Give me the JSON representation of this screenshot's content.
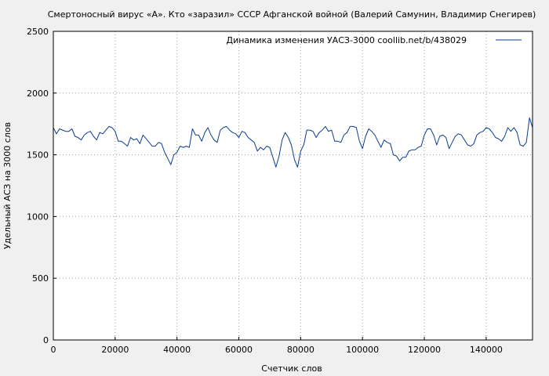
{
  "chart_data": {
    "type": "line",
    "title": "Смертоносный вирус «А». Кто «заразил» СССР Афганской войной (Валерий Самунин, Владимир Снегирев)",
    "xlabel": "Счетчик слов",
    "ylabel": "Удельный АСЗ на 3000 слов",
    "xlim": [
      0,
      155000
    ],
    "ylim": [
      0,
      2500
    ],
    "x_ticks": [
      0,
      20000,
      40000,
      60000,
      80000,
      100000,
      120000,
      140000
    ],
    "x_tick_labels": [
      "0",
      "20000",
      "40000",
      "60000",
      "80000",
      "100000",
      "120000",
      "140000"
    ],
    "y_ticks": [
      0,
      500,
      1000,
      1500,
      2000,
      2500
    ],
    "y_tick_labels": [
      "0",
      "500",
      "1000",
      "1500",
      "2000",
      "2500"
    ],
    "grid": true,
    "legend_position": "top-right",
    "colors": {
      "series": "#0b3d91",
      "background": "#f0f0f0",
      "plot_bg": "#ffffff",
      "grid": "#a0a0a0"
    },
    "series": [
      {
        "name": "Динамика изменения УАСЗ-3000  coollib.net/b/438029",
        "x": [
          0,
          1000,
          2000,
          3000,
          4000,
          5000,
          6000,
          7000,
          8000,
          9000,
          10000,
          11000,
          12000,
          13000,
          14000,
          15000,
          16000,
          17000,
          18000,
          19000,
          20000,
          21000,
          22000,
          23000,
          24000,
          25000,
          26000,
          27000,
          28000,
          29000,
          30000,
          31000,
          32000,
          33000,
          34000,
          35000,
          36000,
          37000,
          38000,
          39000,
          40000,
          41000,
          42000,
          43000,
          44000,
          45000,
          46000,
          47000,
          48000,
          49000,
          50000,
          51000,
          52000,
          53000,
          54000,
          55000,
          56000,
          57000,
          58000,
          59000,
          60000,
          61000,
          62000,
          63000,
          64000,
          65000,
          66000,
          67000,
          68000,
          69000,
          70000,
          71000,
          72000,
          73000,
          74000,
          75000,
          76000,
          77000,
          78000,
          79000,
          80000,
          81000,
          82000,
          83000,
          84000,
          85000,
          86000,
          87000,
          88000,
          89000,
          90000,
          91000,
          92000,
          93000,
          94000,
          95000,
          96000,
          97000,
          98000,
          99000,
          100000,
          101000,
          102000,
          103000,
          104000,
          105000,
          106000,
          107000,
          108000,
          109000,
          110000,
          111000,
          112000,
          113000,
          114000,
          115000,
          116000,
          117000,
          118000,
          119000,
          120000,
          121000,
          122000,
          123000,
          124000,
          125000,
          126000,
          127000,
          128000,
          129000,
          130000,
          131000,
          132000,
          133000,
          134000,
          135000,
          136000,
          137000,
          138000,
          139000,
          140000,
          141000,
          142000,
          143000,
          144000,
          145000,
          146000,
          147000,
          148000,
          149000,
          150000,
          151000,
          152000,
          153000,
          154000,
          155000
        ],
        "y": [
          1720,
          1670,
          1710,
          1700,
          1690,
          1690,
          1710,
          1650,
          1640,
          1620,
          1660,
          1680,
          1690,
          1650,
          1620,
          1680,
          1670,
          1700,
          1730,
          1720,
          1690,
          1610,
          1610,
          1590,
          1570,
          1640,
          1620,
          1630,
          1590,
          1660,
          1630,
          1600,
          1570,
          1570,
          1600,
          1590,
          1520,
          1470,
          1420,
          1500,
          1520,
          1570,
          1560,
          1570,
          1560,
          1710,
          1660,
          1660,
          1610,
          1680,
          1720,
          1660,
          1620,
          1600,
          1700,
          1720,
          1730,
          1700,
          1680,
          1670,
          1640,
          1690,
          1680,
          1640,
          1620,
          1600,
          1530,
          1560,
          1540,
          1570,
          1560,
          1480,
          1400,
          1490,
          1620,
          1680,
          1640,
          1580,
          1460,
          1400,
          1530,
          1580,
          1700,
          1700,
          1690,
          1640,
          1680,
          1700,
          1730,
          1690,
          1700,
          1610,
          1610,
          1600,
          1660,
          1680,
          1730,
          1730,
          1720,
          1610,
          1550,
          1650,
          1710,
          1690,
          1660,
          1610,
          1560,
          1620,
          1600,
          1590,
          1500,
          1490,
          1450,
          1480,
          1480,
          1530,
          1540,
          1540,
          1560,
          1570,
          1660,
          1710,
          1710,
          1660,
          1580,
          1650,
          1660,
          1640,
          1550,
          1600,
          1650,
          1670,
          1660,
          1620,
          1580,
          1570,
          1590,
          1660,
          1680,
          1690,
          1720,
          1710,
          1680,
          1640,
          1630,
          1610,
          1650,
          1720,
          1690,
          1720,
          1680,
          1580,
          1570,
          1600,
          1800,
          1720
        ]
      }
    ]
  }
}
